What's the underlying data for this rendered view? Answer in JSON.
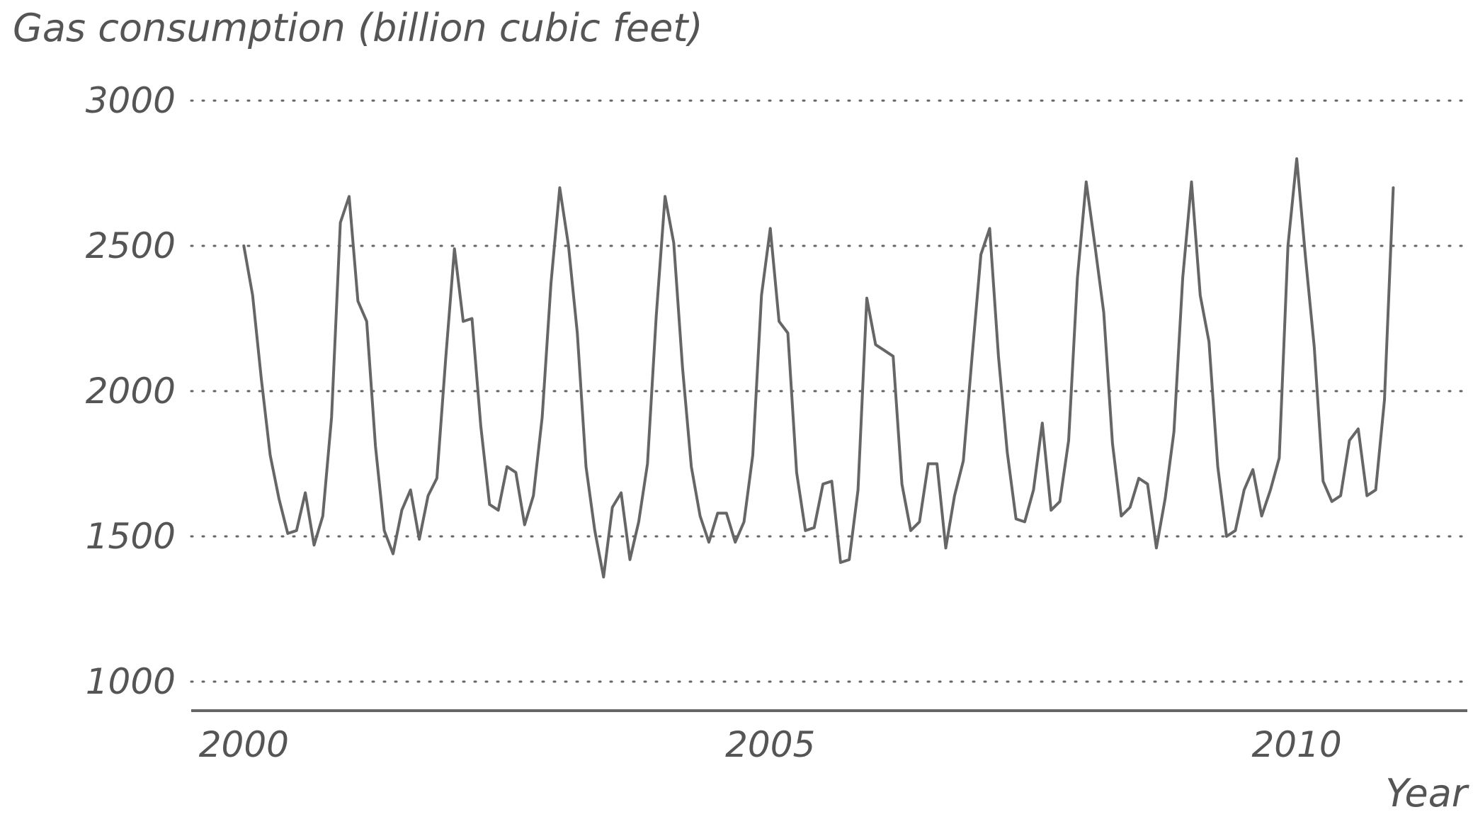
{
  "chart_data": {
    "type": "line",
    "title": "Gas consumption (billion cubic feet)",
    "xlabel": "Year",
    "ylabel": "",
    "ylim": [
      900,
      3000
    ],
    "xlim": [
      1999.5,
      2011.62
    ],
    "yticks": [
      1000,
      1500,
      2000,
      2500,
      3000
    ],
    "xticks": [
      2000,
      2005,
      2010
    ],
    "ytick_labels": [
      "1000",
      "1500",
      "2000",
      "2500",
      "3000"
    ],
    "xtick_labels": [
      "2000",
      "2005",
      "2010"
    ],
    "grid": "horizontal dotted",
    "legend": "none",
    "color": "#666666",
    "series": [
      {
        "values": [
          2500,
          2330,
          2040,
          1780,
          1630,
          1510,
          1520,
          1650,
          1470,
          1570,
          1910,
          2580,
          2670,
          2310,
          2240,
          1810,
          1520,
          1440,
          1590,
          1660,
          1490,
          1640,
          1700,
          2110,
          2490,
          2240,
          2250,
          1880,
          1610,
          1590,
          1740,
          1720,
          1540,
          1640,
          1910,
          2370,
          2700,
          2500,
          2200,
          1740,
          1520,
          1360,
          1600,
          1650,
          1420,
          1550,
          1750,
          2260,
          2670,
          2510,
          2080,
          1740,
          1570,
          1480,
          1580,
          1580,
          1480,
          1550,
          1780,
          2330,
          2560,
          2240,
          2200,
          1720,
          1520,
          1530,
          1680,
          1690,
          1410,
          1420,
          1660,
          2320,
          2160,
          2140,
          2120,
          1680,
          1520,
          1550,
          1750,
          1750,
          1460,
          1640,
          1760,
          2120,
          2470,
          2560,
          2120,
          1790,
          1560,
          1550,
          1660,
          1890,
          1590,
          1620,
          1830,
          2390,
          2720,
          2500,
          2270,
          1820,
          1570,
          1600,
          1700,
          1680,
          1460,
          1630,
          1860,
          2390,
          2720,
          2330,
          2170,
          1740,
          1500,
          1520,
          1660,
          1730,
          1570,
          1660,
          1770,
          2500,
          2800,
          2460,
          2150,
          1690,
          1620,
          1640,
          1830,
          1870,
          1640,
          1660,
          1970,
          2700
        ]
      }
    ]
  }
}
